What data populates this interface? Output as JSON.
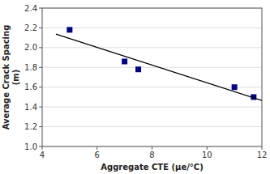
{
  "chart_data": {
    "type": "scatter",
    "x_label": "Aggregate CTE (μe/°C)",
    "y_label": "Average Crack Spacing\n(m)",
    "series": [
      {
        "type": "scatter",
        "x": [
          5.0,
          7.0,
          7.5,
          11.0,
          11.7
        ],
        "values": [
          2.18,
          1.86,
          1.78,
          1.6,
          1.5
        ],
        "color": "#00008B",
        "marker": "square"
      },
      {
        "type": "line",
        "x": [
          4.5,
          12.0
        ],
        "values": [
          2.137,
          1.465
        ],
        "color": "#000000",
        "line_style": "solid"
      }
    ],
    "xlim": [
      4,
      12
    ],
    "ylim": [
      1.0,
      2.4
    ],
    "xticks": [
      4,
      6,
      8,
      10,
      12
    ],
    "yticks": [
      {
        "value": 1.0,
        "label": "1.0"
      },
      1.2,
      1.4,
      1.6,
      1.8,
      {
        "value": 2.0,
        "label": "2.0"
      },
      2.2,
      2.4
    ],
    "grid": "y"
  }
}
